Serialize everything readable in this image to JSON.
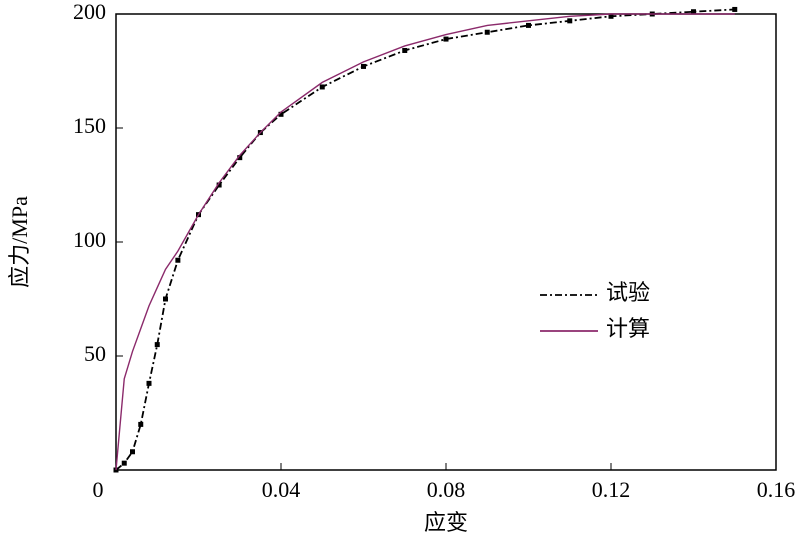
{
  "chart_data": {
    "type": "line",
    "xlabel": "应变",
    "ylabel": "应力/MPa",
    "x": [
      0,
      0.002,
      0.004,
      0.006,
      0.008,
      0.01,
      0.012,
      0.015,
      0.02,
      0.025,
      0.03,
      0.035,
      0.04,
      0.05,
      0.06,
      0.07,
      0.08,
      0.09,
      0.1,
      0.11,
      0.12,
      0.13,
      0.14,
      0.15
    ],
    "series": [
      {
        "name": "试验",
        "color": "#000000",
        "dash": true,
        "values": [
          0,
          3,
          8,
          20,
          38,
          55,
          75,
          92,
          112,
          125,
          137,
          148,
          156,
          168,
          177,
          184,
          189,
          192,
          195,
          197,
          199,
          200,
          201,
          202
        ]
      },
      {
        "name": "计算",
        "color": "#8b2a6b",
        "dash": false,
        "values": [
          0,
          40,
          52,
          62,
          72,
          80,
          88,
          96,
          112,
          126,
          138,
          148,
          157,
          170,
          179,
          186,
          191,
          195,
          197,
          199,
          200,
          200,
          200,
          200
        ]
      }
    ],
    "xlim": [
      0,
      0.16
    ],
    "xticks": [
      0,
      0.04,
      0.08,
      0.12,
      0.16
    ],
    "ylim": [
      0,
      200
    ],
    "yticks": [
      50,
      100,
      150,
      200
    ],
    "grid": false,
    "legend": "right"
  }
}
